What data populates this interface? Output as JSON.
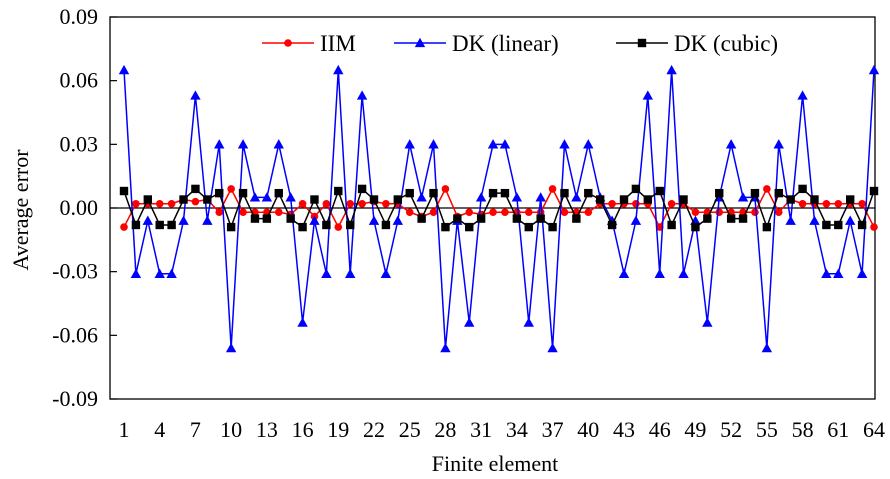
{
  "chart_data": {
    "type": "line",
    "xlabel": "Finite element",
    "ylabel": "Average error",
    "ylim": [
      -0.09,
      0.09
    ],
    "yticks": [
      -0.09,
      -0.06,
      -0.03,
      0.0,
      0.03,
      0.06,
      0.09
    ],
    "ytick_labels": [
      "-0.09",
      "-0.06",
      "-0.03",
      "0.00",
      "0.03",
      "0.06",
      "0.09"
    ],
    "xlim": [
      1,
      64
    ],
    "xticks": [
      1,
      4,
      7,
      10,
      13,
      16,
      19,
      22,
      25,
      28,
      31,
      34,
      37,
      40,
      43,
      46,
      49,
      52,
      55,
      58,
      61,
      64
    ],
    "xtick_labels": [
      "1",
      "4",
      "7",
      "10",
      "13",
      "16",
      "19",
      "22",
      "25",
      "28",
      "31",
      "34",
      "37",
      "40",
      "43",
      "46",
      "49",
      "52",
      "55",
      "58",
      "61",
      "64"
    ],
    "grid": false,
    "legend_position": "top",
    "series": [
      {
        "name": "IIM",
        "color": "#ff0000",
        "marker": "circle",
        "values": [
          -0.009,
          0.002,
          0.002,
          0.002,
          0.002,
          0.004,
          0.003,
          0.004,
          -0.002,
          0.009,
          -0.002,
          -0.002,
          -0.002,
          -0.002,
          -0.003,
          0.002,
          -0.004,
          0.002,
          -0.009,
          0.002,
          0.002,
          0.003,
          0.002,
          0.002,
          -0.002,
          -0.004,
          -0.002,
          0.009,
          -0.004,
          -0.002,
          -0.003,
          -0.002,
          -0.002,
          -0.002,
          -0.002,
          -0.002,
          0.009,
          -0.002,
          -0.002,
          -0.002,
          0.002,
          0.002,
          0.002,
          0.002,
          0.002,
          -0.009,
          0.002,
          0.002,
          -0.002,
          -0.002,
          -0.002,
          -0.002,
          -0.002,
          -0.002,
          0.009,
          -0.002,
          0.004,
          0.002,
          0.002,
          0.002,
          0.002,
          0.002,
          0.002,
          -0.009
        ]
      },
      {
        "name": "DK (linear)",
        "color": "#0000ff",
        "marker": "triangle",
        "values": [
          0.065,
          -0.031,
          -0.006,
          -0.031,
          -0.031,
          -0.006,
          0.053,
          -0.006,
          0.03,
          -0.066,
          0.03,
          0.005,
          0.005,
          0.03,
          0.005,
          -0.054,
          -0.006,
          -0.031,
          0.065,
          -0.031,
          0.053,
          -0.006,
          -0.031,
          -0.006,
          0.03,
          0.005,
          0.03,
          -0.066,
          -0.006,
          -0.054,
          0.005,
          0.03,
          0.03,
          0.005,
          -0.054,
          0.005,
          -0.066,
          0.03,
          0.005,
          0.03,
          0.005,
          -0.006,
          -0.031,
          -0.006,
          0.053,
          -0.031,
          0.065,
          -0.031,
          -0.006,
          -0.054,
          0.005,
          0.03,
          0.005,
          0.005,
          -0.066,
          0.03,
          -0.006,
          0.053,
          -0.006,
          -0.031,
          -0.031,
          -0.006,
          -0.031,
          0.065
        ]
      },
      {
        "name": "DK (cubic)",
        "color": "#000000",
        "marker": "square",
        "values": [
          0.008,
          -0.008,
          0.004,
          -0.008,
          -0.008,
          0.004,
          0.009,
          0.004,
          0.007,
          -0.009,
          0.007,
          -0.005,
          -0.005,
          0.007,
          -0.005,
          -0.009,
          0.004,
          -0.008,
          0.008,
          -0.008,
          0.009,
          0.004,
          -0.008,
          0.004,
          0.007,
          -0.005,
          0.007,
          -0.009,
          -0.005,
          -0.009,
          -0.005,
          0.007,
          0.007,
          -0.005,
          -0.009,
          -0.005,
          -0.009,
          0.007,
          -0.005,
          0.007,
          0.004,
          -0.008,
          0.004,
          0.009,
          0.004,
          0.008,
          -0.008,
          0.004,
          -0.009,
          -0.005,
          0.007,
          -0.005,
          -0.005,
          0.007,
          -0.009,
          0.007,
          0.004,
          0.009,
          0.004,
          -0.008,
          -0.008,
          0.004,
          -0.008,
          0.008
        ]
      }
    ]
  }
}
